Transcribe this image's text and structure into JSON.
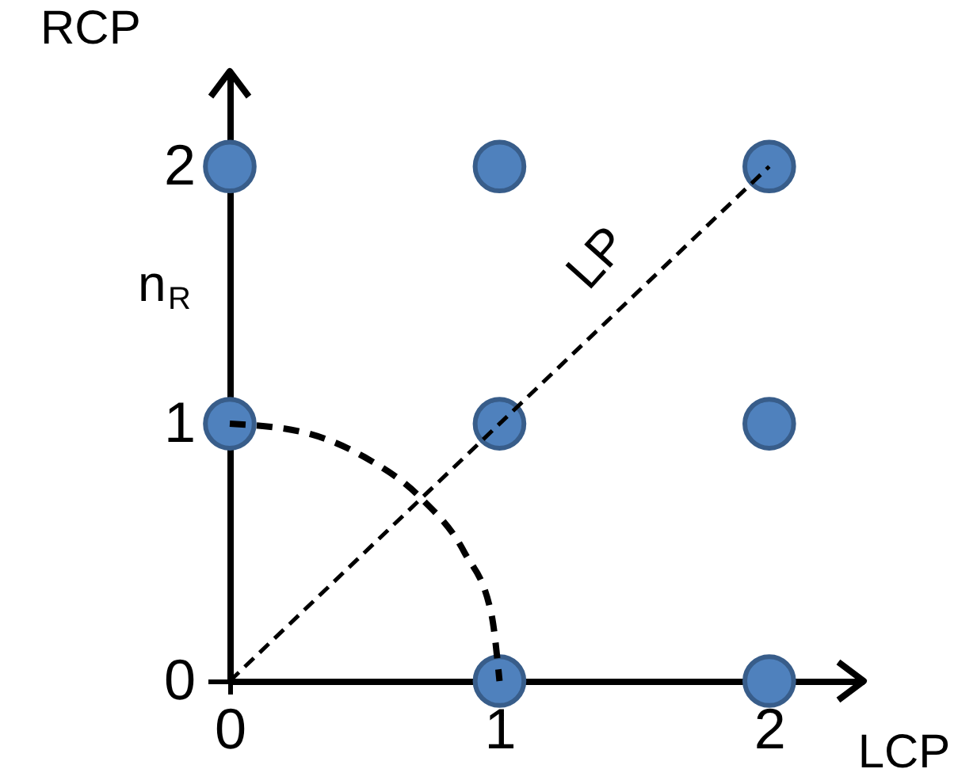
{
  "chart_data": {
    "type": "scatter",
    "xlabel": "LCP",
    "ylabel": "RCP",
    "xlim": [
      0,
      2.35
    ],
    "ylim": [
      0,
      2.37
    ],
    "xticks": [
      0,
      1,
      2
    ],
    "yticks": [
      0,
      1,
      2
    ],
    "grid": false,
    "series": [
      {
        "type": "line",
        "color": "#000000",
        "line_style": "dashed",
        "x": [
          0,
          2
        ],
        "values": [
          0,
          2
        ]
      },
      {
        "type": "line",
        "color": "#000000",
        "line_style": "dashed",
        "x": [
          0,
          0.26,
          0.5,
          0.71,
          0.87,
          0.97,
          1
        ],
        "values": [
          1,
          0.97,
          0.87,
          0.71,
          0.5,
          0.26,
          0
        ]
      },
      {
        "color": "#4f81bd",
        "marker": "circle",
        "x": [
          0,
          1,
          2,
          0,
          1,
          2,
          1,
          2
        ],
        "values": [
          2,
          2,
          2,
          1,
          1,
          1,
          0,
          0
        ]
      }
    ],
    "annotations": [
      "n$_{R}$",
      "LP"
    ]
  }
}
